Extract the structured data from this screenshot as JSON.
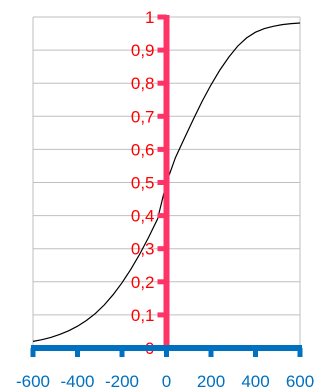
{
  "chart_data": {
    "type": "line",
    "title": "",
    "xlabel": "",
    "ylabel": "",
    "xlim": [
      -600,
      600
    ],
    "ylim": [
      0,
      1
    ],
    "grid": true,
    "x_ticks": [
      -600,
      -400,
      -200,
      0,
      200,
      400,
      600
    ],
    "x_tick_labels": [
      "-600",
      "-400",
      "-200",
      "0",
      "200",
      "400",
      "600"
    ],
    "y_ticks": [
      0,
      0.1,
      0.2,
      0.3,
      0.4,
      0.5,
      0.6,
      0.7,
      0.8,
      0.9,
      1
    ],
    "y_tick_labels": [
      "0",
      "0,1",
      "0,2",
      "0,3",
      "0,4",
      "0,5",
      "0,6",
      "0,7",
      "0,8",
      "0,9",
      "1"
    ],
    "series": [
      {
        "x": [
          -600,
          -560,
          -520,
          -480,
          -440,
          -400,
          -360,
          -320,
          -280,
          -240,
          -200,
          -160,
          -120,
          -80,
          -40,
          0,
          40,
          80,
          120,
          160,
          200,
          240,
          280,
          320,
          360,
          400,
          440,
          480,
          520,
          560,
          600
        ],
        "y": [
          0.02,
          0.025,
          0.032,
          0.041,
          0.052,
          0.066,
          0.083,
          0.104,
          0.13,
          0.161,
          0.197,
          0.238,
          0.284,
          0.335,
          0.39,
          0.5,
          0.575,
          0.633,
          0.69,
          0.745,
          0.795,
          0.84,
          0.879,
          0.912,
          0.937,
          0.954,
          0.965,
          0.972,
          0.977,
          0.98,
          0.982
        ]
      }
    ],
    "colors": {
      "curve": "#000000",
      "y_axis": "#ff3366",
      "x_axis": "#0070c0",
      "y_labels": "#ff0000",
      "x_labels": "#0070c0",
      "grid": "#bfbfbf",
      "plot_border": "#bfbfbf"
    }
  }
}
